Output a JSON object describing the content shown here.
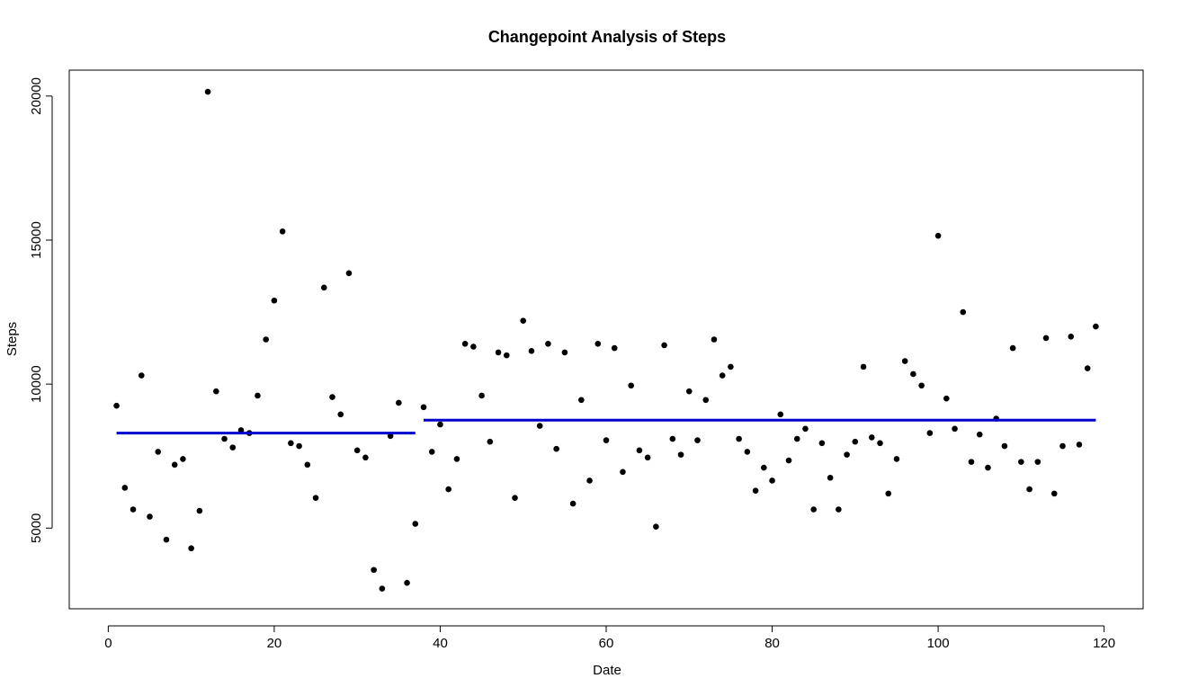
{
  "chart_data": {
    "type": "scatter",
    "title": "Changepoint Analysis of Steps",
    "xlabel": "Date",
    "ylabel": "Steps",
    "xlim": [
      -4.7,
      124.7
    ],
    "ylim": [
      2200,
      20900
    ],
    "xticks": [
      0,
      20,
      40,
      60,
      80,
      100,
      120
    ],
    "yticks": [
      5000,
      10000,
      15000,
      20000
    ],
    "grid": false,
    "point_color": "#000000",
    "segment_color": "#0000CD",
    "points": [
      [
        1,
        9250
      ],
      [
        2,
        6400
      ],
      [
        3,
        5650
      ],
      [
        4,
        10300
      ],
      [
        5,
        5400
      ],
      [
        6,
        7650
      ],
      [
        7,
        4600
      ],
      [
        8,
        7200
      ],
      [
        9,
        7400
      ],
      [
        10,
        4300
      ],
      [
        11,
        5600
      ],
      [
        12,
        20150
      ],
      [
        13,
        9750
      ],
      [
        14,
        8100
      ],
      [
        15,
        7800
      ],
      [
        16,
        8400
      ],
      [
        17,
        8300
      ],
      [
        18,
        9600
      ],
      [
        19,
        11550
      ],
      [
        20,
        12900
      ],
      [
        21,
        15300
      ],
      [
        22,
        7950
      ],
      [
        23,
        7850
      ],
      [
        24,
        7200
      ],
      [
        25,
        6050
      ],
      [
        26,
        13350
      ],
      [
        27,
        9550
      ],
      [
        28,
        8950
      ],
      [
        29,
        13850
      ],
      [
        30,
        7700
      ],
      [
        31,
        7450
      ],
      [
        32,
        3550
      ],
      [
        33,
        2900
      ],
      [
        34,
        8200
      ],
      [
        35,
        9350
      ],
      [
        36,
        3100
      ],
      [
        37,
        5150
      ],
      [
        38,
        9200
      ],
      [
        39,
        7650
      ],
      [
        40,
        8600
      ],
      [
        41,
        6350
      ],
      [
        42,
        7400
      ],
      [
        43,
        11400
      ],
      [
        44,
        11300
      ],
      [
        45,
        9600
      ],
      [
        46,
        8000
      ],
      [
        47,
        11100
      ],
      [
        48,
        11000
      ],
      [
        49,
        6050
      ],
      [
        50,
        12200
      ],
      [
        51,
        11150
      ],
      [
        52,
        8550
      ],
      [
        53,
        11400
      ],
      [
        54,
        7750
      ],
      [
        55,
        11100
      ],
      [
        56,
        5850
      ],
      [
        57,
        9450
      ],
      [
        58,
        6650
      ],
      [
        59,
        11400
      ],
      [
        60,
        8050
      ],
      [
        61,
        11250
      ],
      [
        62,
        6950
      ],
      [
        63,
        9950
      ],
      [
        64,
        7700
      ],
      [
        65,
        7450
      ],
      [
        66,
        5050
      ],
      [
        67,
        11350
      ],
      [
        68,
        8100
      ],
      [
        69,
        7550
      ],
      [
        70,
        9750
      ],
      [
        71,
        8050
      ],
      [
        72,
        9450
      ],
      [
        73,
        11550
      ],
      [
        74,
        10300
      ],
      [
        75,
        10600
      ],
      [
        76,
        8100
      ],
      [
        77,
        7650
      ],
      [
        78,
        6300
      ],
      [
        79,
        7100
      ],
      [
        80,
        6650
      ],
      [
        81,
        8950
      ],
      [
        82,
        7350
      ],
      [
        83,
        8100
      ],
      [
        84,
        8450
      ],
      [
        85,
        5650
      ],
      [
        86,
        7950
      ],
      [
        87,
        6750
      ],
      [
        88,
        5650
      ],
      [
        89,
        7550
      ],
      [
        90,
        8000
      ],
      [
        91,
        10600
      ],
      [
        92,
        8150
      ],
      [
        93,
        7950
      ],
      [
        94,
        6200
      ],
      [
        95,
        7400
      ],
      [
        96,
        10800
      ],
      [
        97,
        10350
      ],
      [
        98,
        9950
      ],
      [
        99,
        8300
      ],
      [
        100,
        15150
      ],
      [
        101,
        9500
      ],
      [
        102,
        8450
      ],
      [
        103,
        12500
      ],
      [
        104,
        7300
      ],
      [
        105,
        8250
      ],
      [
        106,
        7100
      ],
      [
        107,
        8800
      ],
      [
        108,
        7850
      ],
      [
        109,
        11250
      ],
      [
        110,
        7300
      ],
      [
        111,
        6350
      ],
      [
        112,
        7300
      ],
      [
        113,
        11600
      ],
      [
        114,
        6200
      ],
      [
        115,
        7850
      ],
      [
        116,
        11650
      ],
      [
        117,
        7900
      ],
      [
        118,
        10550
      ],
      [
        119,
        12000
      ]
    ],
    "segments": [
      {
        "x_start": 1,
        "x_end": 37,
        "y": 8300
      },
      {
        "x_start": 38,
        "x_end": 119,
        "y": 8750
      }
    ]
  }
}
